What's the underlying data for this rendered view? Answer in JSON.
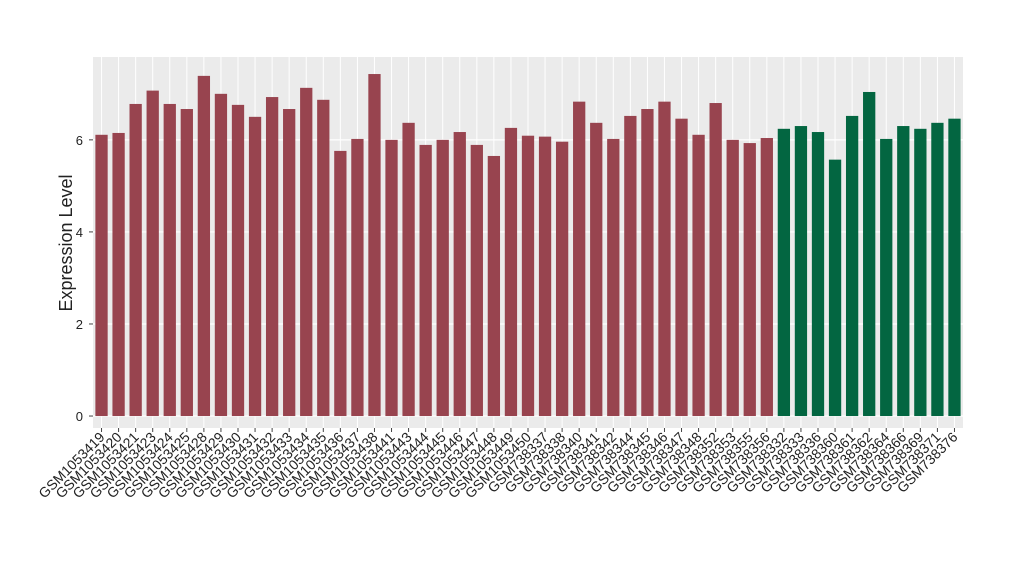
{
  "chart_data": {
    "type": "bar",
    "y_label": "Expression Level",
    "categories": [
      "GSM1053419",
      "GSM1053420",
      "GSM1053421",
      "GSM1053423",
      "GSM1053424",
      "GSM1053425",
      "GSM1053428",
      "GSM1053429",
      "GSM1053430",
      "GSM1053431",
      "GSM1053432",
      "GSM1053433",
      "GSM1053434",
      "GSM1053435",
      "GSM1053436",
      "GSM1053437",
      "GSM1053438",
      "GSM1053441",
      "GSM1053443",
      "GSM1053444",
      "GSM1053445",
      "GSM1053446",
      "GSM1053447",
      "GSM1053448",
      "GSM1053449",
      "GSM1053450",
      "GSM738337",
      "GSM738338",
      "GSM738340",
      "GSM738341",
      "GSM738342",
      "GSM738344",
      "GSM738345",
      "GSM738346",
      "GSM738347",
      "GSM738348",
      "GSM738352",
      "GSM738353",
      "GSM738355",
      "GSM738356",
      "GSM738332",
      "GSM738333",
      "GSM738336",
      "GSM738360",
      "GSM738361",
      "GSM738362",
      "GSM738364",
      "GSM738366",
      "GSM738369",
      "GSM738371",
      "GSM738376"
    ],
    "values": [
      6.11,
      6.15,
      6.78,
      7.07,
      6.78,
      6.67,
      7.39,
      7.0,
      6.76,
      6.5,
      6.93,
      6.67,
      7.13,
      6.87,
      5.76,
      6.02,
      7.43,
      6.0,
      6.37,
      5.89,
      6.0,
      6.17,
      5.89,
      5.65,
      6.26,
      6.09,
      6.07,
      5.96,
      6.83,
      6.37,
      6.02,
      6.52,
      6.67,
      6.83,
      6.46,
      6.11,
      6.8,
      6.0,
      5.93,
      6.04,
      6.24,
      6.3,
      6.17,
      5.57,
      6.52,
      7.04,
      6.02,
      6.3,
      6.24,
      6.37,
      6.46
    ],
    "colors": [
      "#98444f",
      "#98444f",
      "#98444f",
      "#98444f",
      "#98444f",
      "#98444f",
      "#98444f",
      "#98444f",
      "#98444f",
      "#98444f",
      "#98444f",
      "#98444f",
      "#98444f",
      "#98444f",
      "#98444f",
      "#98444f",
      "#98444f",
      "#98444f",
      "#98444f",
      "#98444f",
      "#98444f",
      "#98444f",
      "#98444f",
      "#98444f",
      "#98444f",
      "#98444f",
      "#98444f",
      "#98444f",
      "#98444f",
      "#98444f",
      "#98444f",
      "#98444f",
      "#98444f",
      "#98444f",
      "#98444f",
      "#98444f",
      "#98444f",
      "#98444f",
      "#98444f",
      "#98444f",
      "#036641",
      "#036641",
      "#036641",
      "#036641",
      "#036641",
      "#036641",
      "#036641",
      "#036641",
      "#036641",
      "#036641",
      "#036641"
    ],
    "ylim": [
      -0.26,
      7.8
    ],
    "yticks": [
      0,
      2,
      4,
      6
    ],
    "grid": true
  }
}
